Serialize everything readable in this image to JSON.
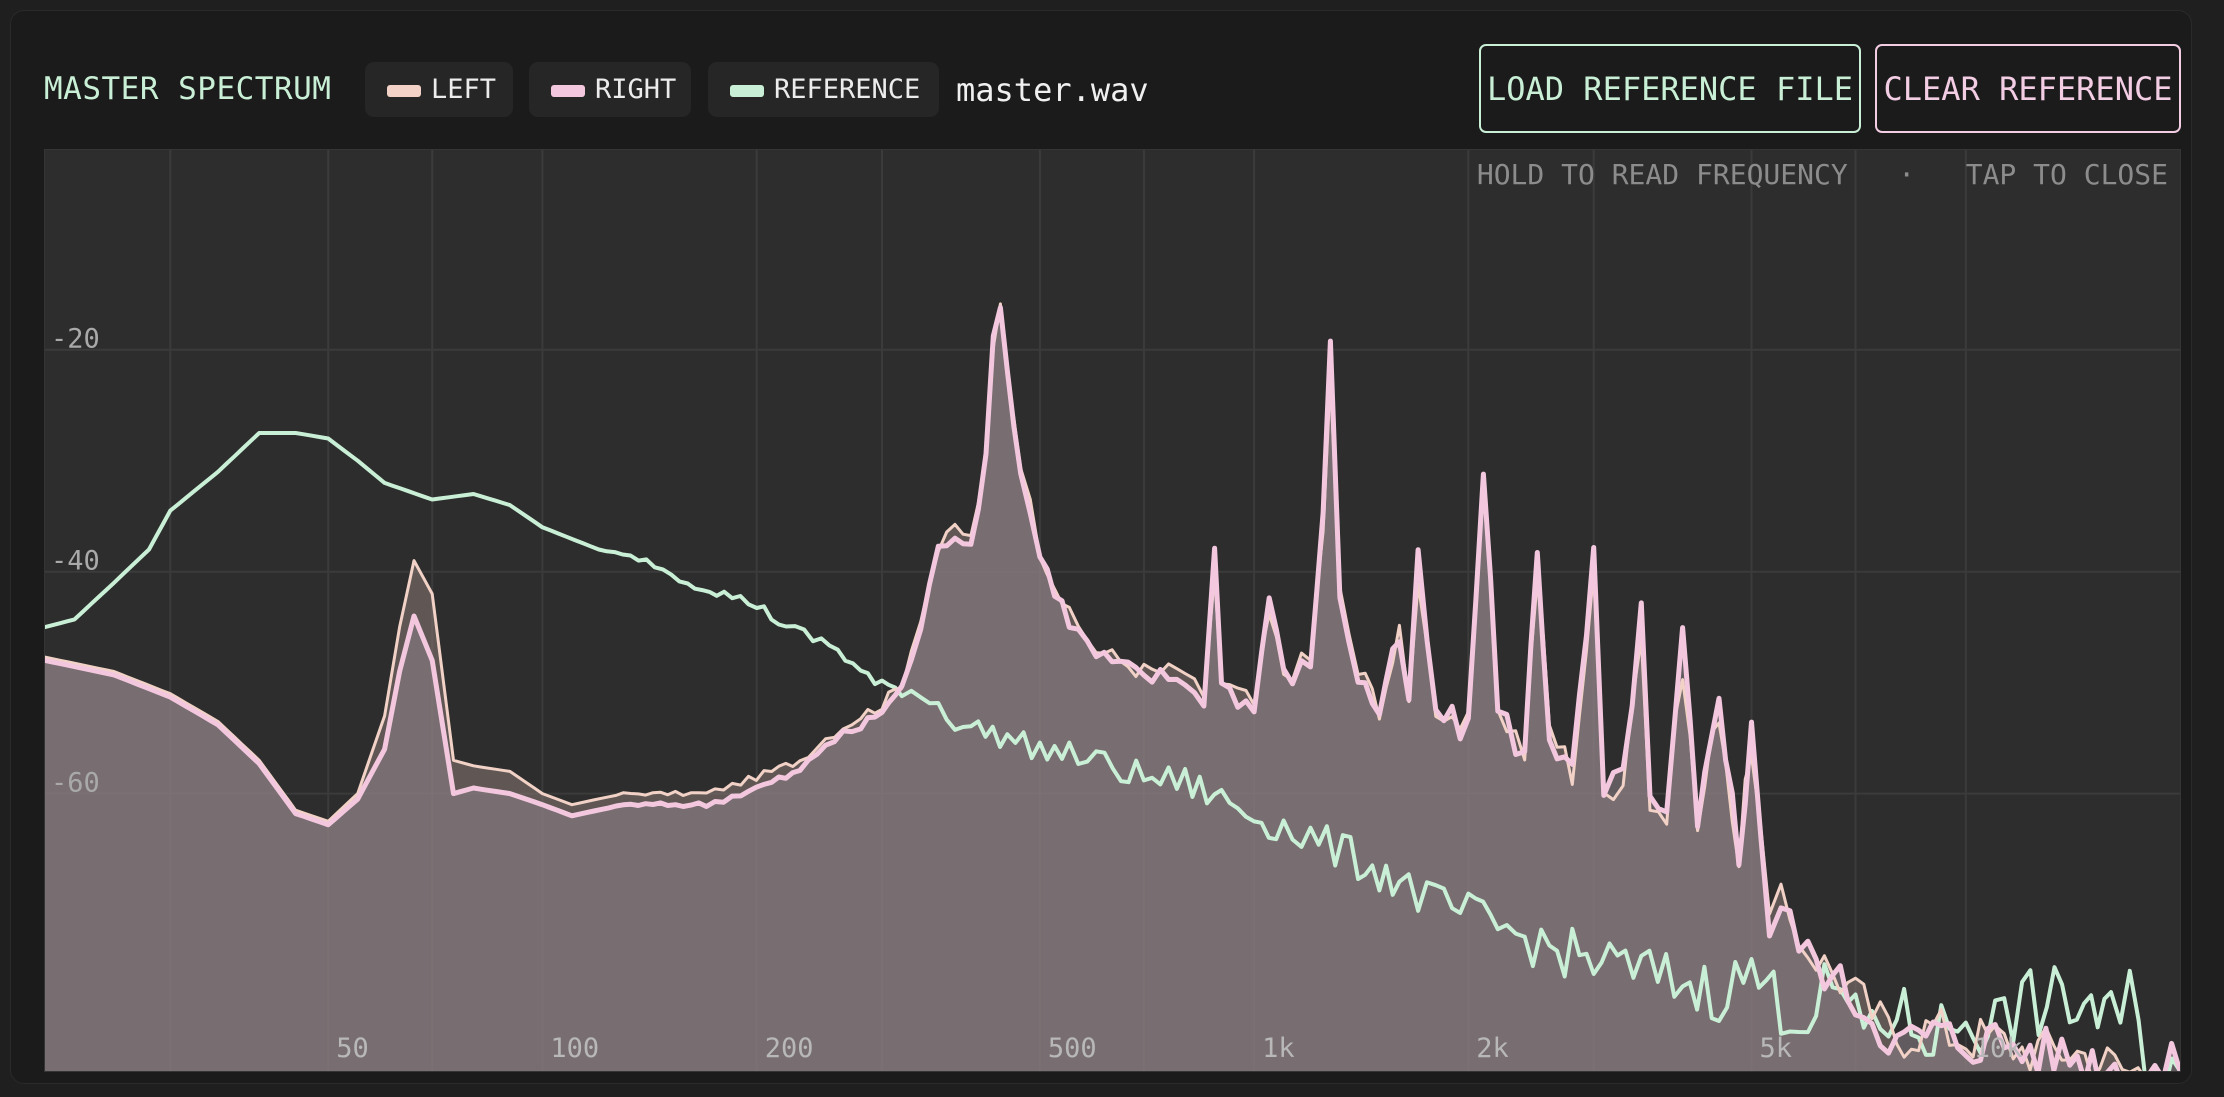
{
  "header": {
    "title": "MASTER SPECTRUM",
    "legend": [
      {
        "label": "LEFT",
        "color": "#f2d2c6"
      },
      {
        "label": "RIGHT",
        "color": "#f3c8df"
      },
      {
        "label": "REFERENCE",
        "color": "#c9f0d6"
      }
    ],
    "filename": "master.wav",
    "load_button": "LOAD REFERENCE FILE",
    "clear_button": "CLEAR REFERENCE"
  },
  "chart_hint": "HOLD TO READ FREQUENCY   ·   TAP TO CLOSE",
  "chart_data": {
    "type": "line",
    "title": "MASTER SPECTRUM",
    "xscale": "log",
    "xlim": [
      20,
      20000
    ],
    "ylim": [
      -85,
      -2
    ],
    "xticks": [
      {
        "value": 50,
        "label": "50"
      },
      {
        "value": 100,
        "label": "100"
      },
      {
        "value": 200,
        "label": "200"
      },
      {
        "value": 500,
        "label": "500"
      },
      {
        "value": 1000,
        "label": "1k"
      },
      {
        "value": 2000,
        "label": "2k"
      },
      {
        "value": 5000,
        "label": "5k"
      },
      {
        "value": 10000,
        "label": "10k"
      }
    ],
    "yticks": [
      {
        "value": -20,
        "label": "-20"
      },
      {
        "value": -40,
        "label": "-40"
      },
      {
        "value": -60,
        "label": "-60"
      }
    ],
    "grid": true,
    "series": [
      {
        "name": "LEFT",
        "color": "#f2d2c6",
        "points": [
          [
            20,
            -47.7
          ],
          [
            25,
            -49
          ],
          [
            30,
            -51
          ],
          [
            35,
            -53.5
          ],
          [
            40,
            -57
          ],
          [
            45,
            -61.5
          ],
          [
            50,
            -62.5
          ],
          [
            55,
            -60
          ],
          [
            60,
            -53
          ],
          [
            63,
            -45
          ],
          [
            66,
            -39
          ],
          [
            70,
            -42
          ],
          [
            75,
            -57
          ],
          [
            80,
            -57.5
          ],
          [
            90,
            -58
          ],
          [
            100,
            -60
          ],
          [
            110,
            -61
          ],
          [
            130,
            -60
          ],
          [
            150,
            -60
          ],
          [
            170,
            -60
          ],
          [
            190,
            -59
          ],
          [
            210,
            -58
          ],
          [
            230,
            -57
          ],
          [
            250,
            -55
          ],
          [
            280,
            -53
          ],
          [
            300,
            -52
          ],
          [
            320,
            -50
          ],
          [
            340,
            -44
          ],
          [
            360,
            -38
          ],
          [
            380,
            -36
          ],
          [
            400,
            -37
          ],
          [
            420,
            -30
          ],
          [
            430,
            -20
          ],
          [
            440,
            -16
          ],
          [
            450,
            -22
          ],
          [
            470,
            -30
          ],
          [
            500,
            -38
          ],
          [
            550,
            -44
          ],
          [
            600,
            -47
          ],
          [
            700,
            -49
          ],
          [
            800,
            -49
          ],
          [
            850,
            -52
          ],
          [
            880,
            -40
          ],
          [
            900,
            -50
          ],
          [
            1000,
            -52
          ],
          [
            1050,
            -44
          ],
          [
            1100,
            -49
          ],
          [
            1200,
            -48
          ],
          [
            1250,
            -36
          ],
          [
            1280,
            -23
          ],
          [
            1320,
            -42
          ],
          [
            1400,
            -49
          ],
          [
            1500,
            -52
          ],
          [
            1600,
            -46
          ],
          [
            1650,
            -52
          ],
          [
            1700,
            -40
          ],
          [
            1750,
            -47
          ],
          [
            1800,
            -52
          ],
          [
            2000,
            -54
          ],
          [
            2100,
            -32
          ],
          [
            2200,
            -52
          ],
          [
            2400,
            -56
          ],
          [
            2500,
            -40
          ],
          [
            2600,
            -54
          ],
          [
            2800,
            -58
          ],
          [
            3000,
            -41
          ],
          [
            3100,
            -60
          ],
          [
            3300,
            -58
          ],
          [
            3500,
            -45
          ],
          [
            3600,
            -61
          ],
          [
            3800,
            -62
          ],
          [
            4000,
            -48
          ],
          [
            4200,
            -63
          ],
          [
            4500,
            -52
          ],
          [
            4800,
            -66
          ],
          [
            5000,
            -55
          ],
          [
            5300,
            -72
          ],
          [
            5500,
            -70
          ],
          [
            6000,
            -74
          ],
          [
            6500,
            -76
          ],
          [
            7000,
            -78
          ],
          [
            8000,
            -82
          ],
          [
            9000,
            -81
          ],
          [
            10000,
            -82
          ],
          [
            11000,
            -82
          ],
          [
            12000,
            -83
          ],
          [
            14000,
            -83
          ],
          [
            17000,
            -85
          ],
          [
            20000,
            -85
          ]
        ]
      },
      {
        "name": "RIGHT",
        "color": "#f3c8df",
        "points": [
          [
            20,
            -48
          ],
          [
            25,
            -49.3
          ],
          [
            30,
            -51.3
          ],
          [
            35,
            -53.8
          ],
          [
            40,
            -57.3
          ],
          [
            45,
            -61.8
          ],
          [
            50,
            -62.8
          ],
          [
            55,
            -60.5
          ],
          [
            60,
            -56
          ],
          [
            63,
            -49
          ],
          [
            66,
            -44
          ],
          [
            70,
            -48
          ],
          [
            75,
            -60
          ],
          [
            80,
            -59.5
          ],
          [
            90,
            -60
          ],
          [
            100,
            -61
          ],
          [
            110,
            -62
          ],
          [
            130,
            -61
          ],
          [
            150,
            -61
          ],
          [
            170,
            -61
          ],
          [
            190,
            -60
          ],
          [
            210,
            -59
          ],
          [
            230,
            -58
          ],
          [
            250,
            -55.5
          ],
          [
            280,
            -54
          ],
          [
            300,
            -52.5
          ],
          [
            320,
            -50.5
          ],
          [
            340,
            -45
          ],
          [
            360,
            -38
          ],
          [
            380,
            -36.5
          ],
          [
            400,
            -37.5
          ],
          [
            420,
            -30
          ],
          [
            430,
            -19
          ],
          [
            440,
            -15.5
          ],
          [
            450,
            -22
          ],
          [
            470,
            -31
          ],
          [
            500,
            -38.5
          ],
          [
            550,
            -44.5
          ],
          [
            600,
            -47.5
          ],
          [
            700,
            -49.5
          ],
          [
            800,
            -49.5
          ],
          [
            850,
            -52.5
          ],
          [
            880,
            -37
          ],
          [
            900,
            -50
          ],
          [
            1000,
            -52.5
          ],
          [
            1050,
            -42
          ],
          [
            1100,
            -49.5
          ],
          [
            1200,
            -48.5
          ],
          [
            1250,
            -34
          ],
          [
            1280,
            -20
          ],
          [
            1320,
            -42
          ],
          [
            1400,
            -49.5
          ],
          [
            1500,
            -52.5
          ],
          [
            1600,
            -46
          ],
          [
            1650,
            -52.5
          ],
          [
            1700,
            -38
          ],
          [
            1750,
            -47
          ],
          [
            1800,
            -52.5
          ],
          [
            2000,
            -54.5
          ],
          [
            2100,
            -30
          ],
          [
            2200,
            -52.5
          ],
          [
            2400,
            -56.5
          ],
          [
            2500,
            -38
          ],
          [
            2600,
            -54.5
          ],
          [
            2800,
            -58.5
          ],
          [
            3000,
            -39
          ],
          [
            3100,
            -60.5
          ],
          [
            3300,
            -58.5
          ],
          [
            3500,
            -43
          ],
          [
            3600,
            -61.5
          ],
          [
            3800,
            -62.5
          ],
          [
            4000,
            -46
          ],
          [
            4200,
            -63.5
          ],
          [
            4500,
            -50
          ],
          [
            4800,
            -66.5
          ],
          [
            5000,
            -53
          ],
          [
            5300,
            -72.5
          ],
          [
            5500,
            -70.5
          ],
          [
            6000,
            -74.5
          ],
          [
            6500,
            -76.5
          ],
          [
            7000,
            -78.5
          ],
          [
            8000,
            -82.5
          ],
          [
            9000,
            -81.5
          ],
          [
            10000,
            -82.5
          ],
          [
            11000,
            -82
          ],
          [
            12000,
            -83
          ],
          [
            14000,
            -83.5
          ],
          [
            17000,
            -85
          ],
          [
            20000,
            -85
          ]
        ]
      },
      {
        "name": "REFERENCE",
        "color": "#c9f0d6",
        "points": [
          [
            20,
            -45
          ],
          [
            22,
            -44.3
          ],
          [
            25,
            -41
          ],
          [
            28,
            -38
          ],
          [
            30,
            -34.5
          ],
          [
            35,
            -31
          ],
          [
            40,
            -27.5
          ],
          [
            45,
            -27.5
          ],
          [
            50,
            -28
          ],
          [
            55,
            -30
          ],
          [
            60,
            -32
          ],
          [
            70,
            -33.5
          ],
          [
            80,
            -33
          ],
          [
            90,
            -34
          ],
          [
            100,
            -36
          ],
          [
            120,
            -38
          ],
          [
            140,
            -39
          ],
          [
            160,
            -41
          ],
          [
            180,
            -42
          ],
          [
            200,
            -43
          ],
          [
            220,
            -45
          ],
          [
            240,
            -46
          ],
          [
            260,
            -47
          ],
          [
            280,
            -49
          ],
          [
            300,
            -50.5
          ],
          [
            320,
            -50.5
          ],
          [
            340,
            -51
          ],
          [
            360,
            -52
          ],
          [
            380,
            -53.5
          ],
          [
            400,
            -54
          ],
          [
            450,
            -55
          ],
          [
            500,
            -56
          ],
          [
            550,
            -56.5
          ],
          [
            600,
            -57
          ],
          [
            650,
            -58
          ],
          [
            700,
            -58.5
          ],
          [
            800,
            -59
          ],
          [
            900,
            -60.5
          ],
          [
            1000,
            -62
          ],
          [
            1100,
            -63
          ],
          [
            1200,
            -64
          ],
          [
            1300,
            -65
          ],
          [
            1400,
            -66
          ],
          [
            1500,
            -67
          ],
          [
            1600,
            -68
          ],
          [
            1700,
            -69
          ],
          [
            1800,
            -70
          ],
          [
            2000,
            -71
          ],
          [
            2200,
            -72
          ],
          [
            2400,
            -73
          ],
          [
            2600,
            -74
          ],
          [
            2800,
            -74.5
          ],
          [
            3000,
            -75
          ],
          [
            3500,
            -76
          ],
          [
            4000,
            -77
          ],
          [
            4500,
            -78
          ],
          [
            5000,
            -76
          ],
          [
            5500,
            -79
          ],
          [
            6000,
            -80
          ],
          [
            6500,
            -77
          ],
          [
            7000,
            -81
          ],
          [
            8000,
            -80
          ],
          [
            9000,
            -82
          ],
          [
            10000,
            -80
          ],
          [
            11000,
            -81
          ],
          [
            12000,
            -79
          ],
          [
            13000,
            -79
          ],
          [
            14000,
            -79
          ],
          [
            15000,
            -79
          ],
          [
            16000,
            -81
          ],
          [
            17000,
            -79
          ],
          [
            18000,
            -84
          ],
          [
            20000,
            -85
          ]
        ]
      }
    ]
  }
}
